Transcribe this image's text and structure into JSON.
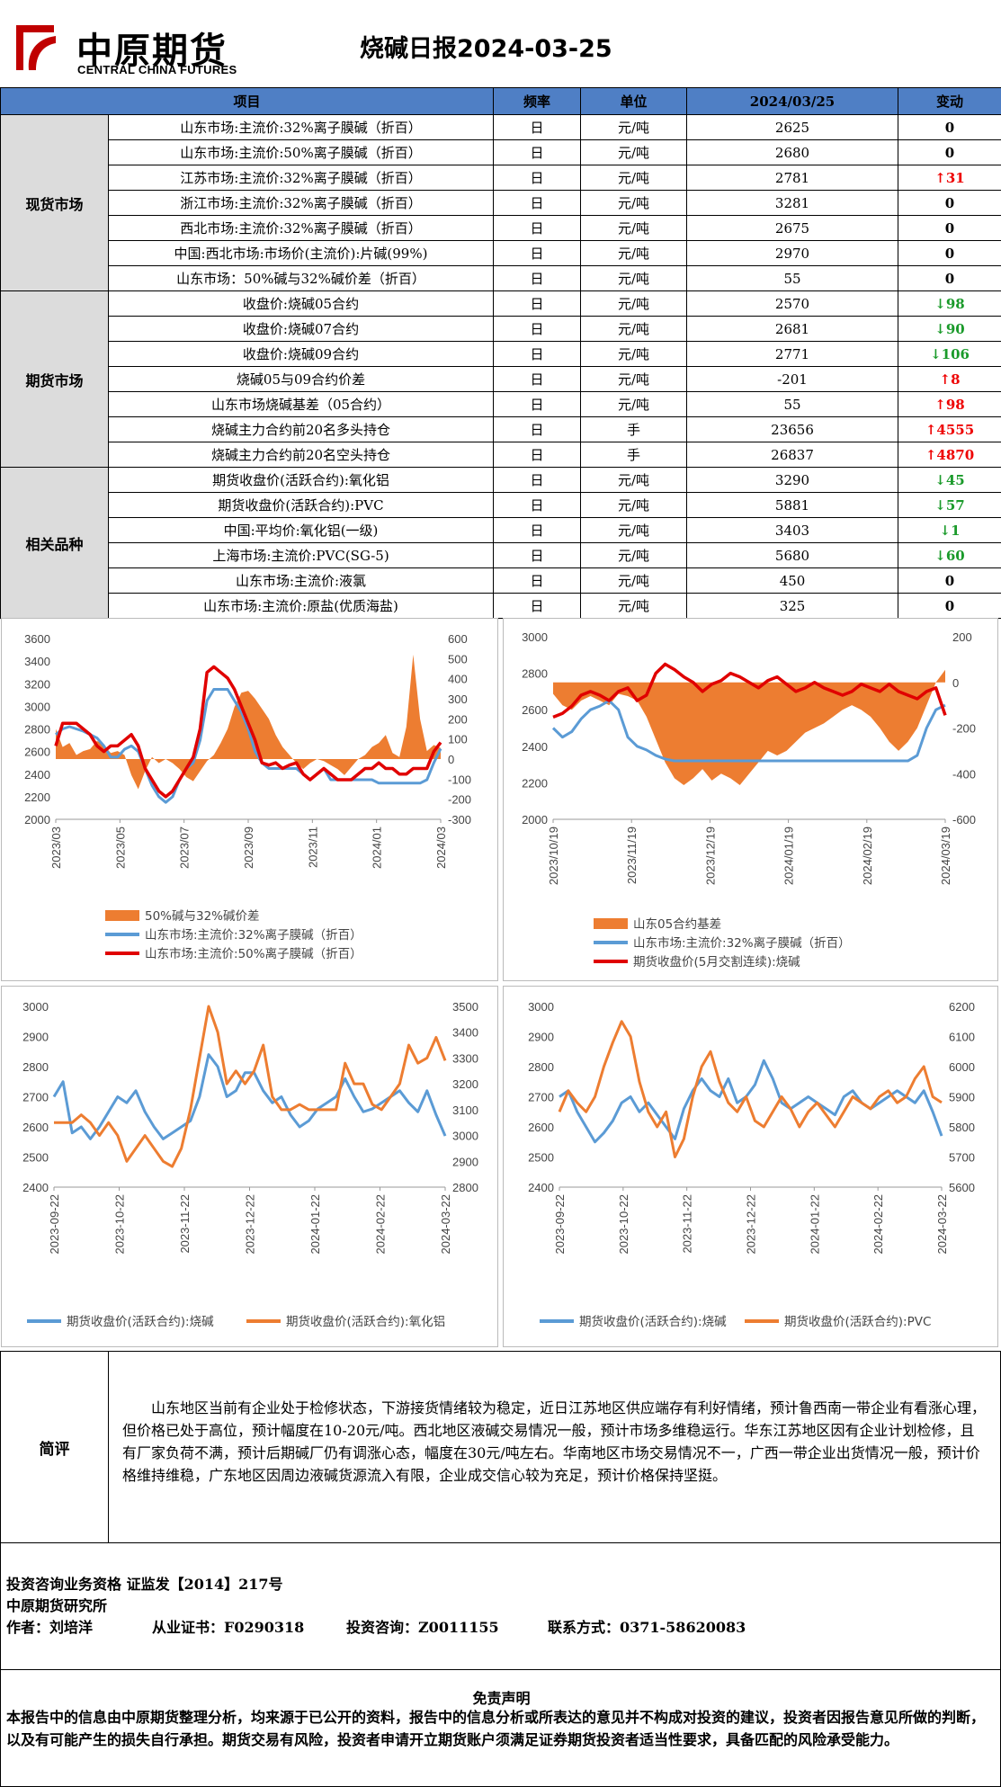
{
  "header": {
    "logo_cn": "中原期货",
    "logo_en": "CENTRAL CHINA FUTURES",
    "title": "烧碱日报2024-03-25"
  },
  "table": {
    "headers": [
      "项目",
      "频率",
      "单位",
      "2024/03/25",
      "变动"
    ],
    "sections": [
      {
        "name": "现货市场",
        "rows": [
          {
            "item": "山东市场:主流价:32%离子膜碱（折百）",
            "freq": "日",
            "unit": "元/吨",
            "value": "2625",
            "change": "0",
            "dir": "zero"
          },
          {
            "item": "山东市场:主流价:50%离子膜碱（折百）",
            "freq": "日",
            "unit": "元/吨",
            "value": "2680",
            "change": "0",
            "dir": "zero"
          },
          {
            "item": "江苏市场:主流价:32%离子膜碱（折百）",
            "freq": "日",
            "unit": "元/吨",
            "value": "2781",
            "change": "↑31",
            "dir": "up"
          },
          {
            "item": "浙江市场:主流价:32%离子膜碱（折百）",
            "freq": "日",
            "unit": "元/吨",
            "value": "3281",
            "change": "0",
            "dir": "zero"
          },
          {
            "item": "西北市场:主流价:32%离子膜碱（折百）",
            "freq": "日",
            "unit": "元/吨",
            "value": "2675",
            "change": "0",
            "dir": "zero"
          },
          {
            "item": "中国:西北市场:市场价(主流价):片碱(99%)",
            "freq": "日",
            "unit": "元/吨",
            "value": "2970",
            "change": "0",
            "dir": "zero"
          },
          {
            "item": "山东市场：50%碱与32%碱价差（折百）",
            "freq": "日",
            "unit": "元/吨",
            "value": "55",
            "change": "0",
            "dir": "zero"
          }
        ]
      },
      {
        "name": "期货市场",
        "rows": [
          {
            "item": "收盘价:烧碱05合约",
            "freq": "日",
            "unit": "元/吨",
            "value": "2570",
            "change": "↓98",
            "dir": "down"
          },
          {
            "item": "收盘价:烧碱07合约",
            "freq": "日",
            "unit": "元/吨",
            "value": "2681",
            "change": "↓90",
            "dir": "down"
          },
          {
            "item": "收盘价:烧碱09合约",
            "freq": "日",
            "unit": "元/吨",
            "value": "2771",
            "change": "↓106",
            "dir": "down"
          },
          {
            "item": "烧碱05与09合约价差",
            "freq": "日",
            "unit": "元/吨",
            "value": "-201",
            "change": "↑8",
            "dir": "up"
          },
          {
            "item": "山东市场烧碱基差（05合约）",
            "freq": "日",
            "unit": "元/吨",
            "value": "55",
            "change": "↑98",
            "dir": "up"
          },
          {
            "item": "烧碱主力合约前20名多头持仓",
            "freq": "日",
            "unit": "手",
            "value": "23656",
            "change": "↑4555",
            "dir": "up"
          },
          {
            "item": "烧碱主力合约前20名空头持仓",
            "freq": "日",
            "unit": "手",
            "value": "26837",
            "change": "↑4870",
            "dir": "up"
          }
        ]
      },
      {
        "name": "相关品种",
        "rows": [
          {
            "item": "期货收盘价(活跃合约):氧化铝",
            "freq": "日",
            "unit": "元/吨",
            "value": "3290",
            "change": "↓45",
            "dir": "down"
          },
          {
            "item": "期货收盘价(活跃合约):PVC",
            "freq": "日",
            "unit": "元/吨",
            "value": "5881",
            "change": "↓57",
            "dir": "down"
          },
          {
            "item": "中国:平均价:氧化铝(一级)",
            "freq": "日",
            "unit": "元/吨",
            "value": "3403",
            "change": "↓1",
            "dir": "down"
          },
          {
            "item": "上海市场:主流价:PVC(SG-5)",
            "freq": "日",
            "unit": "元/吨",
            "value": "5680",
            "change": "↓60",
            "dir": "down"
          },
          {
            "item": "山东市场:主流价:液氯",
            "freq": "日",
            "unit": "元/吨",
            "value": "450",
            "change": "0",
            "dir": "zero"
          },
          {
            "item": "山东市场:主流价:原盐(优质海盐)",
            "freq": "日",
            "unit": "元/吨",
            "value": "325",
            "change": "0",
            "dir": "zero"
          }
        ]
      }
    ]
  },
  "chart_data": [
    {
      "type": "line",
      "left_ticks": [
        "3600",
        "3400",
        "3200",
        "3000",
        "2800",
        "2600",
        "2400",
        "2200",
        "2000"
      ],
      "right_ticks": [
        "600",
        "500",
        "400",
        "300",
        "200",
        "100",
        "0",
        "-100",
        "-200",
        "-300"
      ],
      "ylim": [
        2000,
        3600
      ],
      "y2lim": [
        -300,
        600
      ],
      "x_ticks": [
        "2023/03",
        "2023/05",
        "2023/07",
        "2023/09",
        "2023/11",
        "2024/01",
        "2024/03"
      ],
      "series": [
        {
          "name": "50%碱与32%碱价差",
          "type": "area",
          "color": "#ed7d31",
          "axis": "right",
          "values": [
            150,
            60,
            80,
            20,
            40,
            50,
            90,
            70,
            30,
            40,
            20,
            -80,
            -150,
            -60,
            10,
            -20,
            0,
            -20,
            -50,
            -90,
            -110,
            -60,
            -10,
            20,
            80,
            150,
            260,
            330,
            340,
            300,
            250,
            200,
            120,
            60,
            20,
            -20,
            -50,
            -20,
            0,
            -10,
            -30,
            -50,
            -80,
            -40,
            0,
            20,
            60,
            80,
            120,
            30,
            10,
            160,
            520,
            200,
            40,
            70,
            55
          ]
        },
        {
          "name": "山东市场:主流价:32%离子膜碱（折百）",
          "type": "line",
          "color": "#5b9bd5",
          "axis": "left",
          "values": [
            2750,
            2800,
            2820,
            2800,
            2780,
            2750,
            2720,
            2650,
            2550,
            2550,
            2620,
            2650,
            2600,
            2450,
            2300,
            2200,
            2150,
            2200,
            2350,
            2450,
            2500,
            2700,
            3050,
            3150,
            3150,
            3150,
            3050,
            2950,
            2800,
            2600,
            2500,
            2450,
            2450,
            2450,
            2450,
            2450,
            2400,
            2350,
            2400,
            2450,
            2350,
            2350,
            2350,
            2350,
            2350,
            2350,
            2350,
            2320,
            2320,
            2320,
            2320,
            2320,
            2320,
            2320,
            2350,
            2500,
            2625
          ]
        },
        {
          "name": "山东市场:主流价:50%离子膜碱（折百）",
          "type": "line",
          "color": "#e00000",
          "axis": "left",
          "values": [
            2650,
            2850,
            2850,
            2850,
            2800,
            2750,
            2650,
            2600,
            2650,
            2650,
            2700,
            2750,
            2650,
            2450,
            2350,
            2250,
            2200,
            2250,
            2350,
            2450,
            2550,
            2800,
            3300,
            3350,
            3300,
            3250,
            3150,
            3000,
            2850,
            2700,
            2500,
            2480,
            2500,
            2450,
            2480,
            2500,
            2400,
            2350,
            2400,
            2450,
            2400,
            2350,
            2350,
            2350,
            2400,
            2450,
            2450,
            2500,
            2450,
            2450,
            2400,
            2400,
            2450,
            2450,
            2450,
            2600,
            2680
          ]
        }
      ]
    },
    {
      "type": "line",
      "left_ticks": [
        "3000",
        "2800",
        "2600",
        "2400",
        "2200",
        "2000"
      ],
      "right_ticks": [
        "200",
        "0",
        "-200",
        "-400",
        "-600"
      ],
      "ylim": [
        2000,
        3000
      ],
      "y2lim": [
        -600,
        200
      ],
      "x_ticks": [
        "2023/10/19",
        "2023/11/19",
        "2023/12/19",
        "2024/01/19",
        "2024/02/19",
        "2024/03/19"
      ],
      "series": [
        {
          "name": "山东05合约基差",
          "type": "area",
          "color": "#ed7d31",
          "axis": "right",
          "values": [
            -50,
            -100,
            -120,
            -80,
            -60,
            -80,
            -100,
            -50,
            -60,
            -80,
            -150,
            -250,
            -350,
            -420,
            -450,
            -420,
            -380,
            -430,
            -400,
            -420,
            -450,
            -400,
            -350,
            -300,
            -320,
            -300,
            -260,
            -220,
            -200,
            -180,
            -150,
            -120,
            -100,
            -120,
            -150,
            -200,
            -260,
            -300,
            -260,
            -200,
            -100,
            0,
            55
          ]
        },
        {
          "name": "山东市场:主流价:32%离子膜碱（折百）",
          "type": "line",
          "color": "#5b9bd5",
          "axis": "left",
          "values": [
            2500,
            2450,
            2480,
            2550,
            2600,
            2620,
            2650,
            2600,
            2450,
            2400,
            2380,
            2350,
            2330,
            2320,
            2320,
            2320,
            2320,
            2320,
            2320,
            2320,
            2320,
            2320,
            2320,
            2320,
            2320,
            2320,
            2320,
            2320,
            2320,
            2320,
            2320,
            2320,
            2320,
            2320,
            2320,
            2320,
            2320,
            2320,
            2320,
            2350,
            2500,
            2600,
            2625
          ]
        },
        {
          "name": "期货收盘价(5月交割连续):烧碱",
          "type": "line",
          "color": "#e00000",
          "axis": "left",
          "values": [
            2560,
            2580,
            2620,
            2680,
            2700,
            2680,
            2650,
            2700,
            2720,
            2650,
            2680,
            2800,
            2850,
            2820,
            2780,
            2750,
            2700,
            2740,
            2760,
            2800,
            2780,
            2750,
            2720,
            2760,
            2780,
            2740,
            2700,
            2720,
            2750,
            2720,
            2700,
            2680,
            2700,
            2740,
            2720,
            2700,
            2740,
            2700,
            2680,
            2660,
            2700,
            2720,
            2570
          ]
        }
      ]
    },
    {
      "type": "line",
      "left_ticks": [
        "3000",
        "2900",
        "2800",
        "2700",
        "2600",
        "2500",
        "2400"
      ],
      "right_ticks": [
        "3500",
        "3400",
        "3300",
        "3200",
        "3100",
        "3000",
        "2900",
        "2800"
      ],
      "ylim": [
        2400,
        3000
      ],
      "y2lim": [
        2800,
        3500
      ],
      "x_ticks": [
        "2023-09-22",
        "2023-10-22",
        "2023-11-22",
        "2023-12-22",
        "2024-01-22",
        "2024-02-22",
        "2024-03-22"
      ],
      "series": [
        {
          "name": "期货收盘价(活跃合约):烧碱",
          "type": "line",
          "color": "#5b9bd5",
          "axis": "left",
          "values": [
            2700,
            2750,
            2580,
            2600,
            2560,
            2600,
            2650,
            2700,
            2680,
            2720,
            2650,
            2600,
            2560,
            2580,
            2600,
            2620,
            2700,
            2840,
            2800,
            2700,
            2720,
            2780,
            2780,
            2720,
            2680,
            2700,
            2640,
            2600,
            2620,
            2660,
            2680,
            2700,
            2760,
            2700,
            2650,
            2660,
            2680,
            2700,
            2720,
            2680,
            2650,
            2720,
            2640,
            2570
          ]
        },
        {
          "name": "期货收盘价(活跃合约):氧化铝",
          "type": "line",
          "color": "#ed7d31",
          "axis": "right",
          "values": [
            3050,
            3050,
            3050,
            3080,
            3050,
            3000,
            3050,
            3000,
            2900,
            2950,
            3000,
            2950,
            2900,
            2880,
            2950,
            3100,
            3300,
            3500,
            3400,
            3200,
            3250,
            3200,
            3250,
            3350,
            3150,
            3100,
            3100,
            3120,
            3100,
            3100,
            3100,
            3100,
            3280,
            3200,
            3200,
            3120,
            3100,
            3150,
            3200,
            3350,
            3280,
            3300,
            3380,
            3290
          ]
        }
      ]
    },
    {
      "type": "line",
      "left_ticks": [
        "3000",
        "2900",
        "2800",
        "2700",
        "2600",
        "2500",
        "2400"
      ],
      "right_ticks": [
        "6200",
        "6100",
        "6000",
        "5900",
        "5800",
        "5700",
        "5600"
      ],
      "ylim": [
        2400,
        3000
      ],
      "y2lim": [
        5600,
        6200
      ],
      "x_ticks": [
        "2023-09-22",
        "2023-10-22",
        "2023-11-22",
        "2023-12-22",
        "2024-01-22",
        "2024-02-22",
        "2024-03-22"
      ],
      "series": [
        {
          "name": "期货收盘价(活跃合约):烧碱",
          "type": "line",
          "color": "#5b9bd5",
          "axis": "left",
          "values": [
            2700,
            2720,
            2650,
            2600,
            2550,
            2580,
            2620,
            2680,
            2700,
            2650,
            2680,
            2640,
            2600,
            2560,
            2660,
            2720,
            2760,
            2720,
            2700,
            2760,
            2680,
            2700,
            2740,
            2820,
            2760,
            2680,
            2660,
            2680,
            2700,
            2680,
            2660,
            2640,
            2700,
            2720,
            2680,
            2660,
            2680,
            2700,
            2720,
            2700,
            2680,
            2720,
            2650,
            2570
          ]
        },
        {
          "name": "期货收盘价(活跃合约):PVC",
          "type": "line",
          "color": "#ed7d31",
          "axis": "right",
          "values": [
            5850,
            5920,
            5880,
            5850,
            5900,
            6000,
            6080,
            6150,
            6100,
            5950,
            5850,
            5800,
            5850,
            5700,
            5760,
            5900,
            6000,
            6050,
            5950,
            5880,
            5850,
            5900,
            5820,
            5800,
            5850,
            5900,
            5860,
            5800,
            5850,
            5880,
            5840,
            5800,
            5850,
            5900,
            5880,
            5860,
            5900,
            5920,
            5880,
            5900,
            5960,
            6000,
            5900,
            5881
          ]
        }
      ]
    }
  ],
  "comment": {
    "label": "简评",
    "text": "山东地区当前有企业处于检修状态，下游接货情绪较为稳定，近日江苏地区供应端存有利好情绪，预计鲁西南一带企业有看涨心理，但价格已处于高位，预计幅度在10-20元/吨。西北地区液碱交易情况一般，预计市场多维稳运行。华东江苏地区因有企业计划检修，且有厂家负荷不满，预计后期碱厂仍有调涨心态，幅度在30元/吨左右。华南地区市场交易情况不一，广西一带企业出货情况一般，预计价格维持维稳，广东地区因周边液碱货源流入有限，企业成交信心较为充足，预计价格保持坚挺。"
  },
  "footer": {
    "line1": "投资咨询业务资格   证监发【2014】217号",
    "line2": "中原期货研究所",
    "author": "作者：刘培洋",
    "cert": "从业证书：F0290318",
    "advisory": "投资咨询：Z0011155",
    "contact": "联系方式：0371-58620083"
  },
  "disclaimer": {
    "title": "免责声明",
    "text": "本报告中的信息由中原期货整理分析，均来源于已公开的资料，报告中的信息分析或所表达的意见并不构成对投资的建议，投资者因报告意见所做的判断，以及有可能产生的损失自行承担。期货交易有风险，投资者申请开立期货账户须满足证券期货投资者适当性要求，具备匹配的风险承受能力。"
  }
}
